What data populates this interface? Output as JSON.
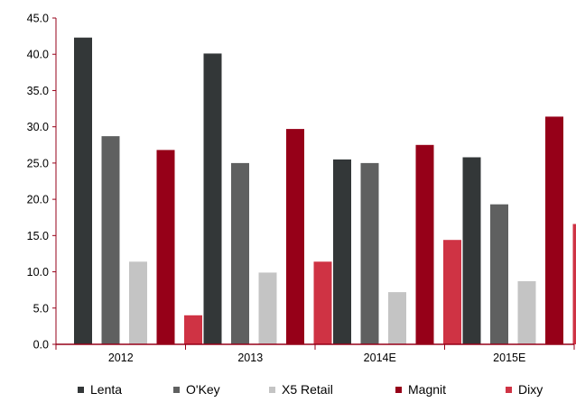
{
  "chart_data": {
    "type": "bar",
    "categories": [
      "2012",
      "2013",
      "2014E",
      "2015E"
    ],
    "series": [
      {
        "name": "Lenta",
        "color": "#333738",
        "values": [
          42.3,
          40.1,
          25.5,
          25.8
        ]
      },
      {
        "name": "O'Key",
        "color": "#5f6060",
        "values": [
          28.7,
          25.0,
          25.0,
          19.3
        ]
      },
      {
        "name": "X5 Retail",
        "color": "#c4c4c4",
        "values": [
          11.4,
          9.9,
          7.2,
          8.7
        ]
      },
      {
        "name": "Magnit",
        "color": "#960018",
        "values": [
          26.8,
          29.7,
          27.5,
          31.4
        ]
      },
      {
        "name": "Dixy",
        "color": "#cf3344",
        "values": [
          4.0,
          11.4,
          14.4,
          16.6
        ]
      }
    ],
    "ylim": [
      0,
      45
    ],
    "yticks": [
      "0.0",
      "5.0",
      "10.0",
      "15.0",
      "20.0",
      "25.0",
      "30.0",
      "35.0",
      "40.0",
      "45.0"
    ],
    "grid": false,
    "legend_position": "bottom",
    "axis_color": "#960018"
  }
}
